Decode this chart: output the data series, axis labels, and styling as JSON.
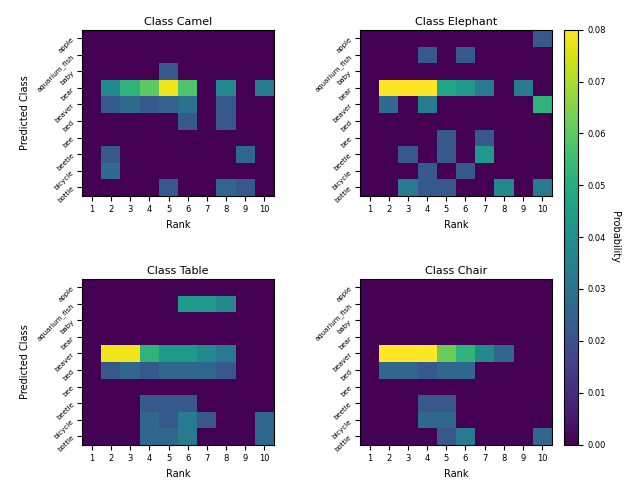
{
  "titles": [
    "Class Camel",
    "Class Elephant",
    "Class Table",
    "Class Chair"
  ],
  "y_labels": [
    "apple",
    "aquarium_fish",
    "baby",
    "bear",
    "beaver",
    "bed",
    "bee",
    "beetle",
    "bicycle",
    "bottle"
  ],
  "x_labels": [
    "1",
    "2",
    "3",
    "4",
    "5",
    "6",
    "7",
    "8",
    "9",
    "10"
  ],
  "xlabel": "Rank",
  "ylabel": "Predicted Class",
  "colorbar_label": "Probability",
  "vmin": 0.0,
  "vmax": 0.08,
  "cmap": "viridis",
  "camel": [
    [
      0.0,
      0.0,
      0.0,
      0.0,
      0.0,
      0.0,
      0.0,
      0.0,
      0.0,
      0.0
    ],
    [
      0.0,
      0.0,
      0.0,
      0.0,
      0.0,
      0.0,
      0.0,
      0.0,
      0.0,
      0.0
    ],
    [
      0.0,
      0.0,
      0.0,
      0.0,
      0.022,
      0.0,
      0.0,
      0.0,
      0.0,
      0.0
    ],
    [
      0.0,
      0.038,
      0.052,
      0.06,
      0.078,
      0.058,
      0.0,
      0.038,
      0.0,
      0.033
    ],
    [
      0.0,
      0.022,
      0.028,
      0.022,
      0.025,
      0.03,
      0.0,
      0.022,
      0.0,
      0.0
    ],
    [
      0.0,
      0.0,
      0.0,
      0.0,
      0.0,
      0.022,
      0.0,
      0.022,
      0.0,
      0.0
    ],
    [
      0.0,
      0.0,
      0.0,
      0.0,
      0.0,
      0.0,
      0.0,
      0.0,
      0.0,
      0.0
    ],
    [
      0.0,
      0.022,
      0.0,
      0.0,
      0.0,
      0.0,
      0.0,
      0.0,
      0.027,
      0.0
    ],
    [
      0.0,
      0.028,
      0.0,
      0.0,
      0.0,
      0.0,
      0.0,
      0.0,
      0.0,
      0.0
    ],
    [
      0.0,
      0.0,
      0.0,
      0.0,
      0.022,
      0.0,
      0.0,
      0.027,
      0.022,
      0.0
    ]
  ],
  "elephant": [
    [
      0.0,
      0.0,
      0.0,
      0.0,
      0.0,
      0.0,
      0.0,
      0.0,
      0.0,
      0.022
    ],
    [
      0.0,
      0.0,
      0.0,
      0.022,
      0.0,
      0.022,
      0.0,
      0.0,
      0.0,
      0.0
    ],
    [
      0.0,
      0.0,
      0.0,
      0.0,
      0.0,
      0.0,
      0.0,
      0.0,
      0.0,
      0.0
    ],
    [
      0.0,
      0.08,
      0.08,
      0.08,
      0.048,
      0.043,
      0.033,
      0.0,
      0.033,
      0.0
    ],
    [
      0.0,
      0.028,
      0.0,
      0.033,
      0.0,
      0.0,
      0.0,
      0.0,
      0.0,
      0.052
    ],
    [
      0.0,
      0.0,
      0.0,
      0.0,
      0.0,
      0.0,
      0.0,
      0.0,
      0.0,
      0.0
    ],
    [
      0.0,
      0.0,
      0.0,
      0.0,
      0.022,
      0.0,
      0.022,
      0.0,
      0.0,
      0.0
    ],
    [
      0.0,
      0.0,
      0.022,
      0.0,
      0.022,
      0.0,
      0.043,
      0.0,
      0.0,
      0.0
    ],
    [
      0.0,
      0.0,
      0.0,
      0.022,
      0.0,
      0.022,
      0.0,
      0.0,
      0.0,
      0.0
    ],
    [
      0.0,
      0.0,
      0.033,
      0.022,
      0.022,
      0.0,
      0.0,
      0.038,
      0.0,
      0.033
    ]
  ],
  "table": [
    [
      0.0,
      0.0,
      0.0,
      0.0,
      0.0,
      0.0,
      0.0,
      0.0,
      0.0,
      0.0
    ],
    [
      0.0,
      0.0,
      0.0,
      0.0,
      0.0,
      0.043,
      0.043,
      0.038,
      0.0,
      0.0
    ],
    [
      0.0,
      0.0,
      0.0,
      0.0,
      0.0,
      0.0,
      0.0,
      0.0,
      0.0,
      0.0
    ],
    [
      0.0,
      0.0,
      0.0,
      0.0,
      0.0,
      0.0,
      0.0,
      0.0,
      0.0,
      0.0
    ],
    [
      0.0,
      0.078,
      0.078,
      0.052,
      0.043,
      0.043,
      0.038,
      0.033,
      0.0,
      0.0
    ],
    [
      0.0,
      0.022,
      0.027,
      0.022,
      0.027,
      0.027,
      0.027,
      0.022,
      0.0,
      0.0
    ],
    [
      0.0,
      0.0,
      0.0,
      0.0,
      0.0,
      0.0,
      0.0,
      0.0,
      0.0,
      0.0
    ],
    [
      0.0,
      0.0,
      0.0,
      0.022,
      0.022,
      0.022,
      0.0,
      0.0,
      0.0,
      0.0
    ],
    [
      0.0,
      0.0,
      0.0,
      0.027,
      0.022,
      0.033,
      0.022,
      0.0,
      0.0,
      0.027
    ],
    [
      0.0,
      0.0,
      0.0,
      0.027,
      0.027,
      0.033,
      0.0,
      0.0,
      0.0,
      0.027
    ]
  ],
  "chair": [
    [
      0.0,
      0.0,
      0.0,
      0.0,
      0.0,
      0.0,
      0.0,
      0.0,
      0.0,
      0.0
    ],
    [
      0.0,
      0.0,
      0.0,
      0.0,
      0.0,
      0.0,
      0.0,
      0.0,
      0.0,
      0.0
    ],
    [
      0.0,
      0.0,
      0.0,
      0.0,
      0.0,
      0.0,
      0.0,
      0.0,
      0.0,
      0.0
    ],
    [
      0.0,
      0.0,
      0.0,
      0.0,
      0.0,
      0.0,
      0.0,
      0.0,
      0.0,
      0.0
    ],
    [
      0.0,
      0.08,
      0.08,
      0.08,
      0.062,
      0.052,
      0.038,
      0.027,
      0.0,
      0.0
    ],
    [
      0.0,
      0.027,
      0.027,
      0.022,
      0.027,
      0.027,
      0.0,
      0.0,
      0.0,
      0.0
    ],
    [
      0.0,
      0.0,
      0.0,
      0.0,
      0.0,
      0.0,
      0.0,
      0.0,
      0.0,
      0.0
    ],
    [
      0.0,
      0.0,
      0.0,
      0.022,
      0.022,
      0.0,
      0.0,
      0.0,
      0.0,
      0.0
    ],
    [
      0.0,
      0.0,
      0.0,
      0.027,
      0.027,
      0.0,
      0.0,
      0.0,
      0.0,
      0.0
    ],
    [
      0.0,
      0.0,
      0.0,
      0.0,
      0.022,
      0.033,
      0.0,
      0.0,
      0.0,
      0.027
    ]
  ]
}
